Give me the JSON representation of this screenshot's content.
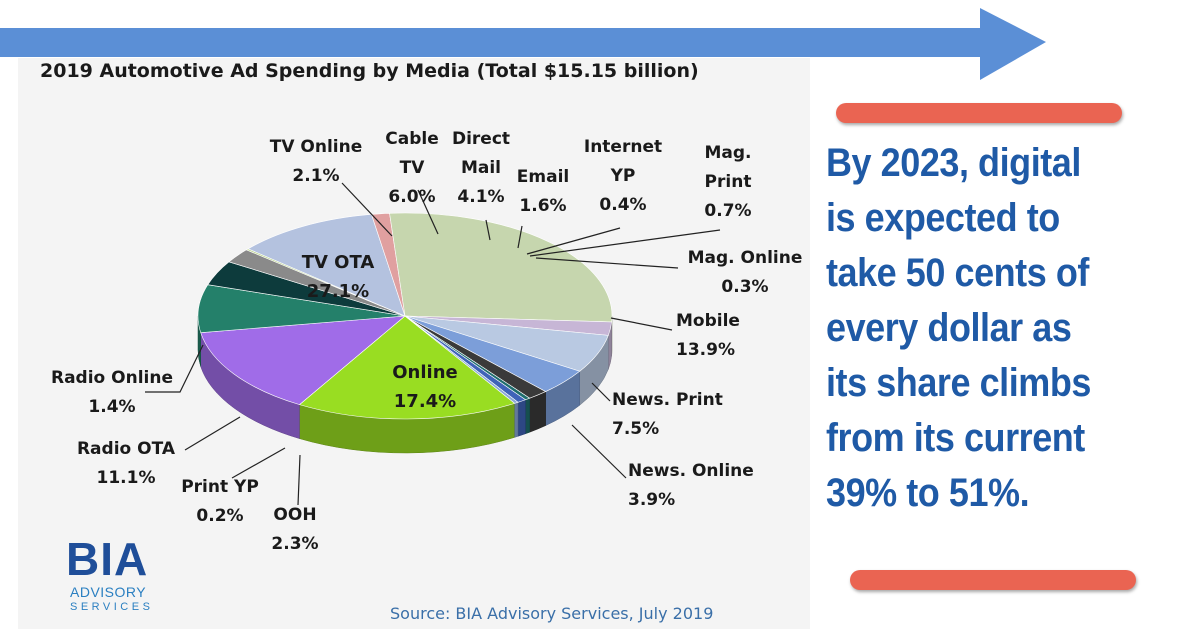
{
  "chart_data": {
    "type": "pie",
    "title": "2019 Automotive Ad Spending by Media (Total $15.15 billion)",
    "unit": "%",
    "slices": [
      {
        "label": "Online",
        "value": 17.4,
        "value_label": "17.4%",
        "color": "#99dd22"
      },
      {
        "label": "Mobile",
        "value": 13.9,
        "value_label": "13.9%",
        "color": "#a06ce8"
      },
      {
        "label": "News. Print",
        "value": 7.5,
        "value_label": "7.5%",
        "color": "#24806a"
      },
      {
        "label": "News. Online",
        "value": 3.9,
        "value_label": "3.9%",
        "color": "#0d3b3c"
      },
      {
        "label": "OOH",
        "value": 2.3,
        "value_label": "2.3%",
        "color": "#8a8a8a"
      },
      {
        "label": "Print YP",
        "value": 0.2,
        "value_label": "0.2%",
        "color": "#b9d28a"
      },
      {
        "label": "Radio OTA",
        "value": 11.1,
        "value_label": "11.1%",
        "color": "#b4c2df"
      },
      {
        "label": "Radio Online",
        "value": 1.4,
        "value_label": "1.4%",
        "color": "#e0a0a0"
      },
      {
        "label": "TV OTA",
        "value": 27.1,
        "value_label": "27.1%",
        "color": "#c6d6ae"
      },
      {
        "label": "TV Online",
        "value": 2.1,
        "value_label": "2.1%",
        "color": "#c7b6d6"
      },
      {
        "label": "Cable TV",
        "value": 6.0,
        "value_label": "6.0%",
        "color": "#b9c9e2"
      },
      {
        "label": "Direct Mail",
        "value": 4.1,
        "value_label": "4.1%",
        "color": "#7c9ed9"
      },
      {
        "label": "Email",
        "value": 1.6,
        "value_label": "1.6%",
        "color": "#3a3a3a"
      },
      {
        "label": "Internet YP",
        "value": 0.4,
        "value_label": "0.4%",
        "color": "#1f6e6e"
      },
      {
        "label": "Mag. Print",
        "value": 0.7,
        "value_label": "0.7%",
        "color": "#3f63b8"
      },
      {
        "label": "Mag. Online",
        "value": 0.3,
        "value_label": "0.3%",
        "color": "#8aa8d8"
      }
    ]
  },
  "callout": {
    "lines": [
      "By 2023, digital",
      "is expected to",
      "take 50 cents of",
      "every dollar as",
      "its share climbs",
      "from its current",
      "39% to 51%."
    ]
  },
  "logo": {
    "name": "BIA",
    "line1": "ADVISORY",
    "line2": "SERVICES"
  },
  "source": "Source: BIA Advisory Services, July 2019",
  "colors": {
    "arrow": "#5b8fd6",
    "callout_text": "#1f5aa6",
    "pill": "#ea6452",
    "logo": "#1f4e99"
  }
}
